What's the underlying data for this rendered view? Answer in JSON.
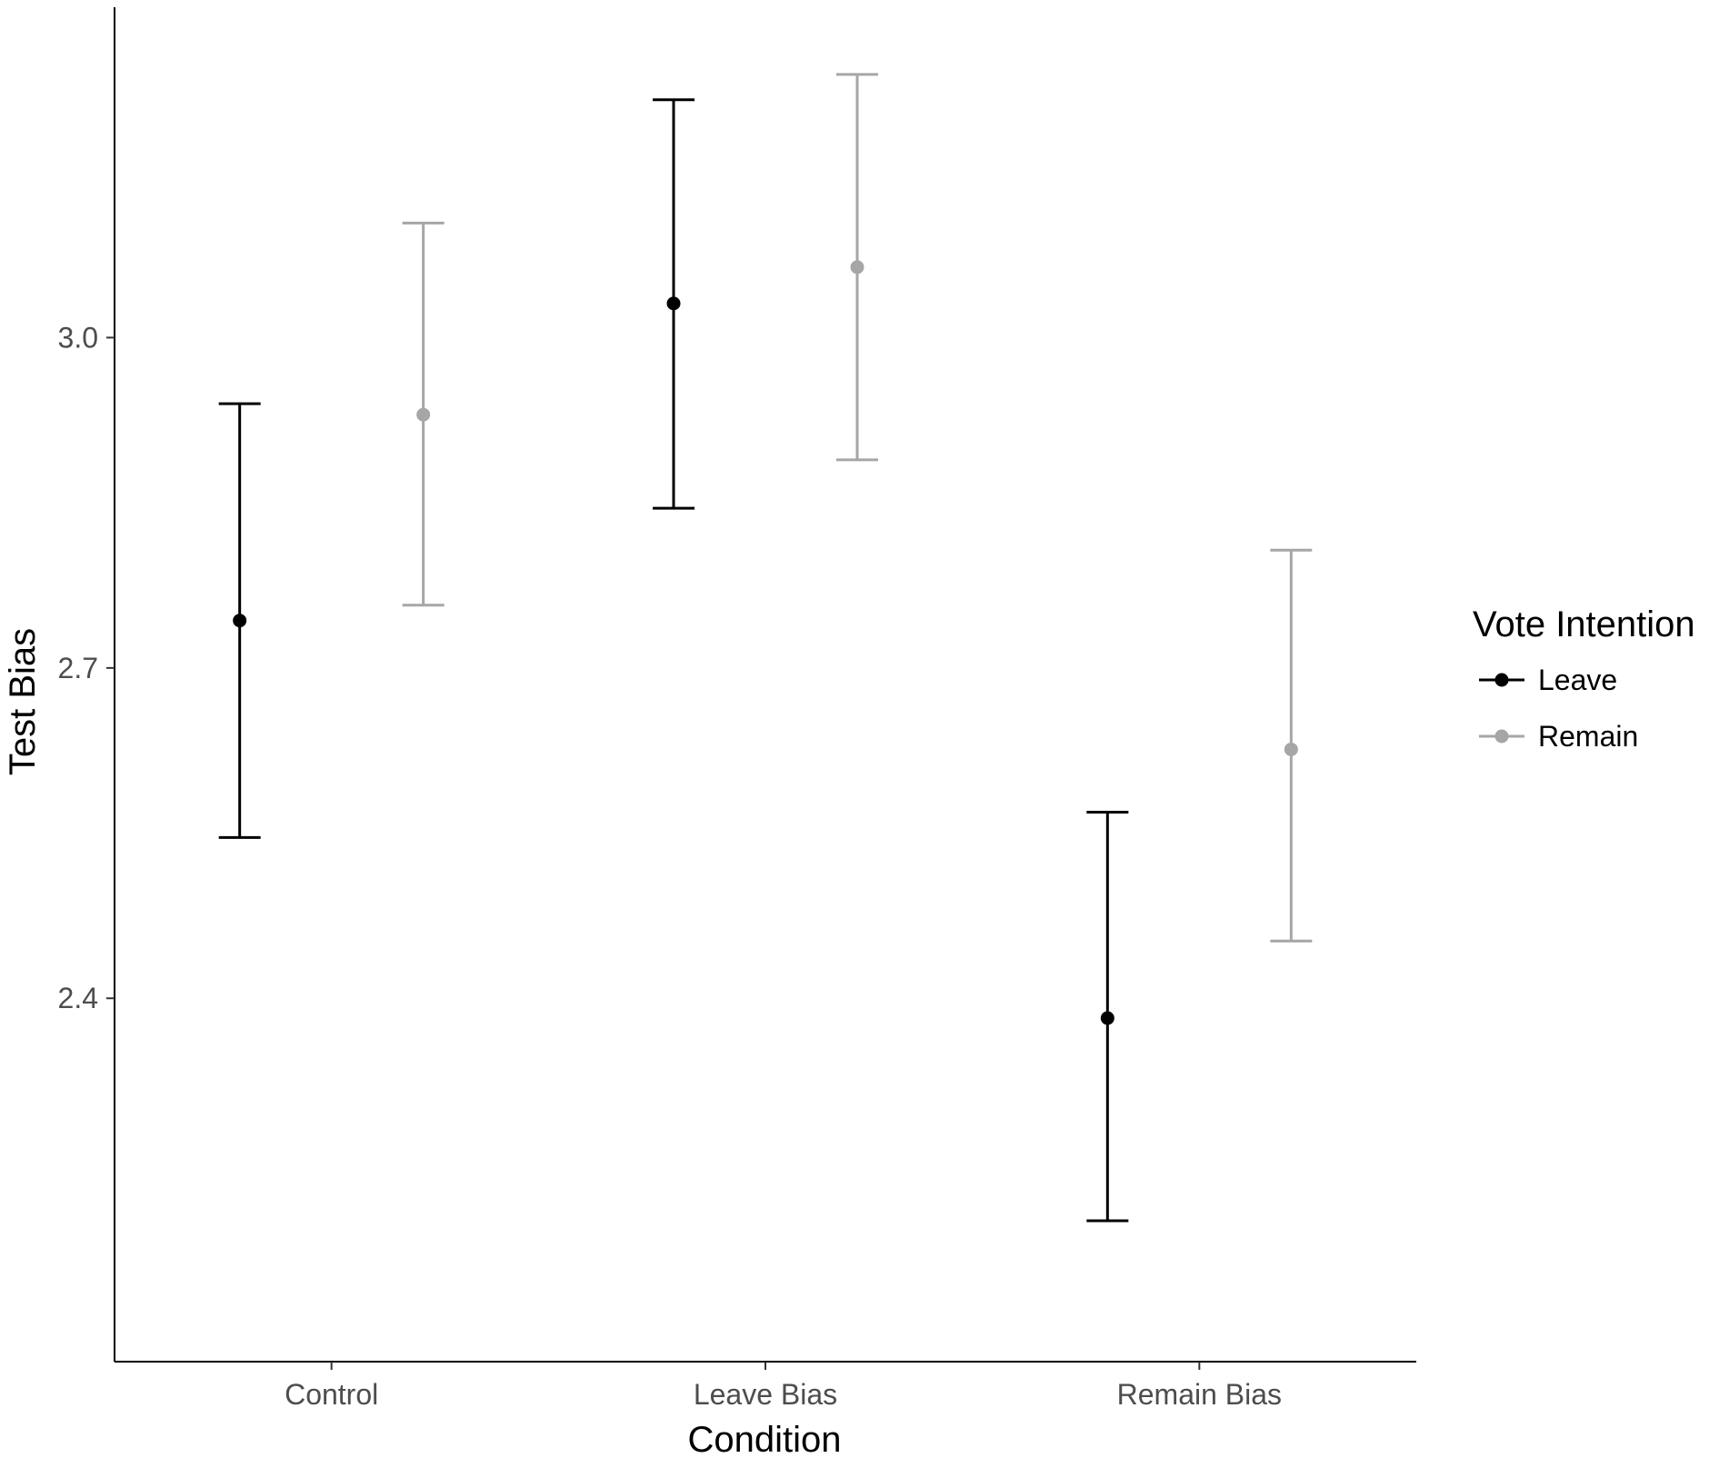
{
  "chart_data": {
    "type": "scatter",
    "subtype": "point-errorbar",
    "xlabel": "Condition",
    "ylabel": "Test Bias",
    "categories": [
      "Control",
      "Leave Bias",
      "Remain Bias"
    ],
    "ylim": [
      2.07,
      3.3
    ],
    "yticks": [
      2.4,
      2.7,
      3.0
    ],
    "ytick_labels": [
      "2.4",
      "2.7",
      "3.0"
    ],
    "grid": false,
    "legend": {
      "title": "Vote Intention",
      "placement": "right"
    },
    "series": [
      {
        "name": "Leave",
        "color": "#000000",
        "values": [
          2.743,
          3.031,
          2.382
        ],
        "lower": [
          2.546,
          2.845,
          2.198
        ],
        "upper": [
          2.94,
          3.216,
          2.569
        ]
      },
      {
        "name": "Remain",
        "color": "#a6a6a6",
        "values": [
          2.93,
          3.064,
          2.626
        ],
        "lower": [
          2.757,
          2.889,
          2.452
        ],
        "upper": [
          3.104,
          3.239,
          2.807
        ]
      }
    ]
  }
}
